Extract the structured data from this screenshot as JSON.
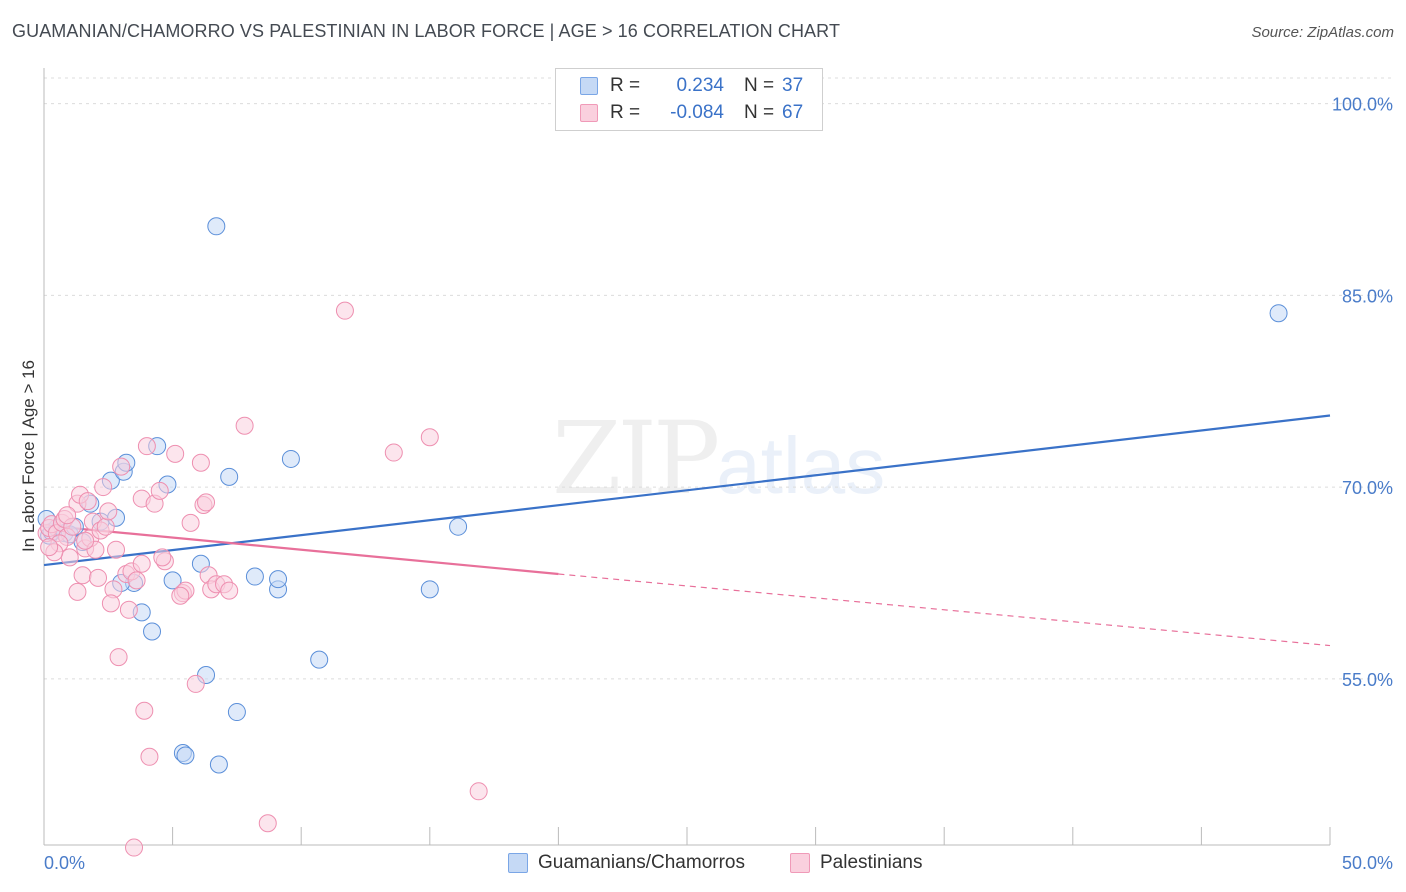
{
  "title": "GUAMANIAN/CHAMORRO VS PALESTINIAN IN LABOR FORCE | AGE > 16 CORRELATION CHART",
  "source": "Source: ZipAtlas.com",
  "watermark": {
    "zip": "ZIP",
    "atlas": "atlas"
  },
  "legend": {
    "rows": [
      {
        "r_label": "R =",
        "r_value": "0.234",
        "n_label": "N =",
        "n_value": "37",
        "color": "#7aa6e6",
        "fill": "#c5d9f5"
      },
      {
        "r_label": "R =",
        "r_value": "-0.084",
        "n_label": "N =",
        "n_value": "67",
        "color": "#f09ab8",
        "fill": "#fad0de"
      }
    ]
  },
  "bottom_legend": [
    {
      "label": "Guamanians/Chamorros",
      "color": "#7aa6e6",
      "fill": "#c5d9f5"
    },
    {
      "label": "Palestinians",
      "color": "#f09ab8",
      "fill": "#fad0de"
    }
  ],
  "chart_data": {
    "type": "scatter",
    "title": "GUAMANIAN/CHAMORRO VS PALESTINIAN IN LABOR FORCE | AGE > 16 CORRELATION CHART",
    "xlabel": "",
    "ylabel": "In Labor Force | Age > 16",
    "xlim": [
      0,
      50
    ],
    "ylim": [
      42,
      102
    ],
    "x_tick_labels": [
      "0.0%",
      "50.0%"
    ],
    "y_ticks": [
      55,
      70,
      85,
      100
    ],
    "y_tick_labels": [
      "55.0%",
      "70.0%",
      "85.0%",
      "100.0%"
    ],
    "grid": true,
    "legend_position": "top-center",
    "series": [
      {
        "name": "Guamanians/Chamorros",
        "color": "#5b8fd9",
        "fill": "#c5d9f5",
        "trend": {
          "x": [
            0,
            50
          ],
          "y": [
            63.9,
            75.6
          ],
          "color": "#3a72c8"
        },
        "points": [
          [
            0.2,
            66.2
          ],
          [
            0.3,
            66.5
          ],
          [
            0.5,
            66.8
          ],
          [
            0.8,
            66.4
          ],
          [
            1.0,
            66.3
          ],
          [
            1.2,
            66.9
          ],
          [
            1.5,
            65.7
          ],
          [
            1.8,
            68.7
          ],
          [
            2.2,
            67.3
          ],
          [
            2.6,
            70.5
          ],
          [
            2.8,
            67.6
          ],
          [
            3.1,
            71.2
          ],
          [
            3.2,
            71.9
          ],
          [
            3.5,
            62.5
          ],
          [
            3.8,
            60.2
          ],
          [
            4.2,
            58.7
          ],
          [
            4.4,
            73.2
          ],
          [
            4.8,
            70.2
          ],
          [
            5.0,
            62.7
          ],
          [
            5.4,
            49.2
          ],
          [
            5.5,
            49.0
          ],
          [
            6.1,
            64.0
          ],
          [
            6.3,
            55.3
          ],
          [
            6.7,
            90.4
          ],
          [
            6.8,
            48.3
          ],
          [
            7.2,
            70.8
          ],
          [
            7.5,
            52.4
          ],
          [
            8.2,
            63.0
          ],
          [
            9.1,
            62.0
          ],
          [
            9.1,
            62.8
          ],
          [
            9.6,
            72.2
          ],
          [
            10.7,
            56.5
          ],
          [
            15.0,
            62.0
          ],
          [
            16.1,
            66.9
          ],
          [
            48.0,
            83.6
          ],
          [
            0.1,
            67.5
          ],
          [
            3.0,
            62.5
          ]
        ]
      },
      {
        "name": "Palestinians",
        "color": "#ee8fb0",
        "fill": "#fad0de",
        "trend": {
          "x": [
            0,
            20
          ],
          "y": [
            67.0,
            63.2
          ],
          "dash_to": [
            50,
            57.6
          ],
          "color": "#e8709a"
        },
        "points": [
          [
            0.1,
            66.4
          ],
          [
            0.2,
            66.8
          ],
          [
            0.3,
            67.1
          ],
          [
            0.5,
            66.4
          ],
          [
            0.7,
            67.2
          ],
          [
            0.8,
            67.5
          ],
          [
            0.9,
            66.1
          ],
          [
            1.0,
            64.5
          ],
          [
            1.1,
            66.9
          ],
          [
            1.3,
            68.7
          ],
          [
            1.4,
            69.4
          ],
          [
            1.5,
            63.1
          ],
          [
            1.6,
            65.2
          ],
          [
            1.7,
            68.9
          ],
          [
            1.8,
            66.0
          ],
          [
            1.9,
            67.3
          ],
          [
            2.0,
            65.1
          ],
          [
            2.2,
            66.6
          ],
          [
            2.3,
            70.0
          ],
          [
            2.4,
            66.9
          ],
          [
            2.5,
            68.1
          ],
          [
            2.7,
            62.0
          ],
          [
            2.8,
            65.1
          ],
          [
            2.9,
            56.7
          ],
          [
            3.0,
            71.6
          ],
          [
            3.2,
            63.2
          ],
          [
            3.4,
            63.4
          ],
          [
            3.6,
            62.7
          ],
          [
            3.8,
            69.1
          ],
          [
            3.8,
            64.0
          ],
          [
            3.9,
            52.5
          ],
          [
            4.0,
            73.2
          ],
          [
            4.1,
            48.9
          ],
          [
            4.3,
            68.7
          ],
          [
            4.5,
            69.7
          ],
          [
            4.7,
            64.2
          ],
          [
            5.1,
            72.6
          ],
          [
            5.4,
            61.7
          ],
          [
            5.5,
            61.9
          ],
          [
            5.7,
            67.2
          ],
          [
            5.9,
            54.6
          ],
          [
            6.1,
            71.9
          ],
          [
            6.2,
            68.6
          ],
          [
            6.3,
            68.8
          ],
          [
            6.4,
            63.1
          ],
          [
            6.5,
            62.0
          ],
          [
            6.7,
            62.4
          ],
          [
            7.0,
            62.4
          ],
          [
            7.2,
            61.9
          ],
          [
            7.8,
            74.8
          ],
          [
            8.7,
            43.7
          ],
          [
            11.7,
            83.8
          ],
          [
            13.6,
            72.7
          ],
          [
            15.0,
            73.9
          ],
          [
            16.9,
            46.2
          ],
          [
            3.5,
            41.8
          ],
          [
            2.6,
            60.9
          ],
          [
            1.3,
            61.8
          ],
          [
            0.6,
            65.6
          ],
          [
            0.4,
            64.9
          ],
          [
            0.9,
            67.8
          ],
          [
            2.1,
            62.9
          ],
          [
            3.3,
            60.4
          ],
          [
            4.6,
            64.5
          ],
          [
            5.3,
            61.5
          ],
          [
            1.6,
            65.8
          ],
          [
            0.2,
            65.3
          ]
        ]
      }
    ]
  }
}
